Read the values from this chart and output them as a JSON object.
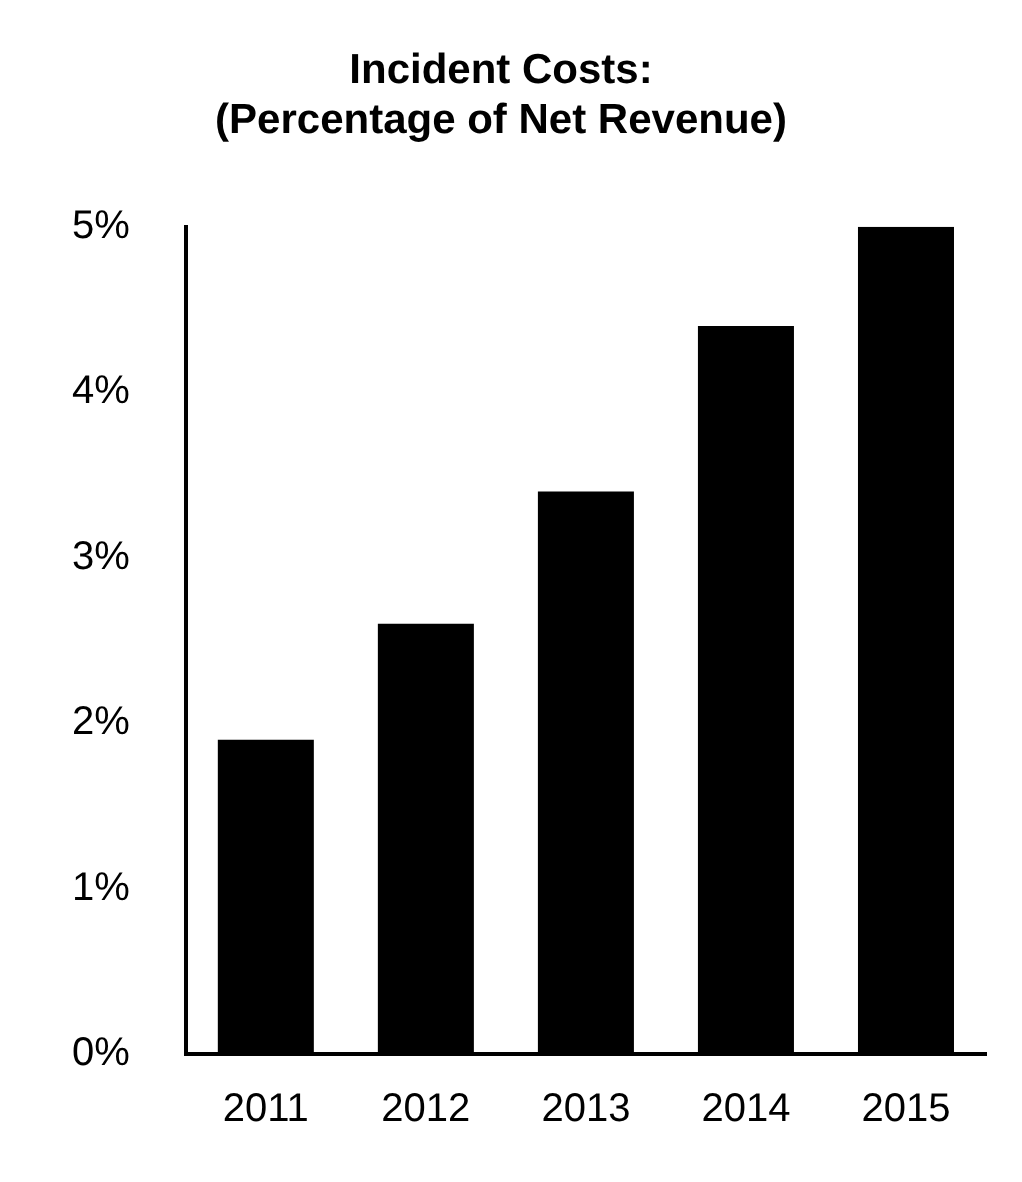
{
  "chart_data": {
    "type": "bar",
    "title": "Incident Costs:\n(Percentage of Net Revenue)",
    "categories": [
      "2011",
      "2012",
      "2013",
      "2014",
      "2015"
    ],
    "values": [
      1.9,
      2.6,
      3.4,
      4.4,
      5.0
    ],
    "color": "#000000",
    "ylim": [
      0,
      5
    ],
    "yticks": [
      {
        "value": 0,
        "label": "0%"
      },
      {
        "value": 1,
        "label": "1%"
      },
      {
        "value": 2,
        "label": "2%"
      },
      {
        "value": 3,
        "label": "3%"
      },
      {
        "value": 4,
        "label": "4%"
      },
      {
        "value": 5,
        "label": "5%"
      }
    ],
    "grid": false,
    "legend": false
  }
}
